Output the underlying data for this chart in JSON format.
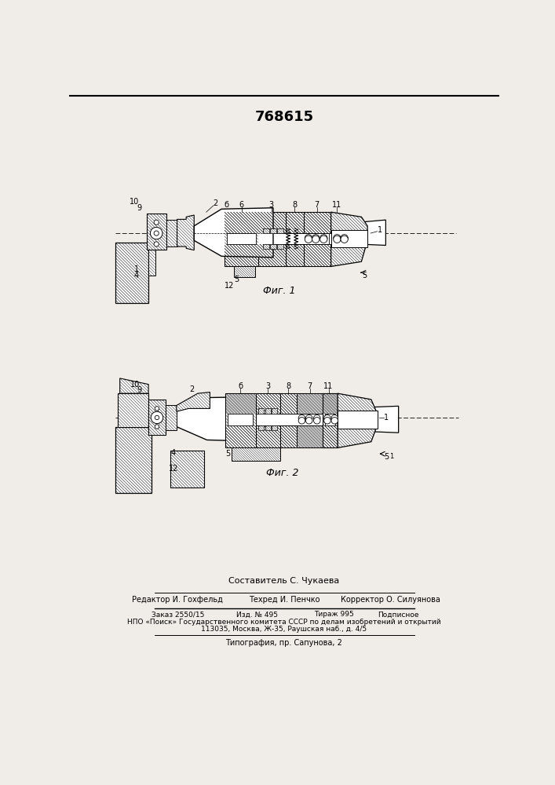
{
  "patent_number": "768615",
  "fig1_label": "Фиг. 1",
  "fig2_label": "Фиг. 2",
  "footer_composer": "Составитель С. Чукаева",
  "footer_editor": "Редактор И. Гохфельд",
  "footer_tech": "Техред И. Пенчко",
  "footer_corr": "Корректор О. Силуянова",
  "footer_order": "Заказ 2550/15",
  "footer_ed": "Изд. № 495",
  "footer_print": "Тираж 995",
  "footer_sub": "Подписное",
  "footer_npo": "НПО «Поиск» Государственного комитета СССР по делам изобретений и открытий",
  "footer_addr": "113035, Москва, Ж-35, Раушская наб., д. 4/5",
  "footer_typo": "Типография, пр. Сапунова, 2",
  "bg_color": "#f0ede8",
  "white": "#ffffff",
  "black": "#000000"
}
